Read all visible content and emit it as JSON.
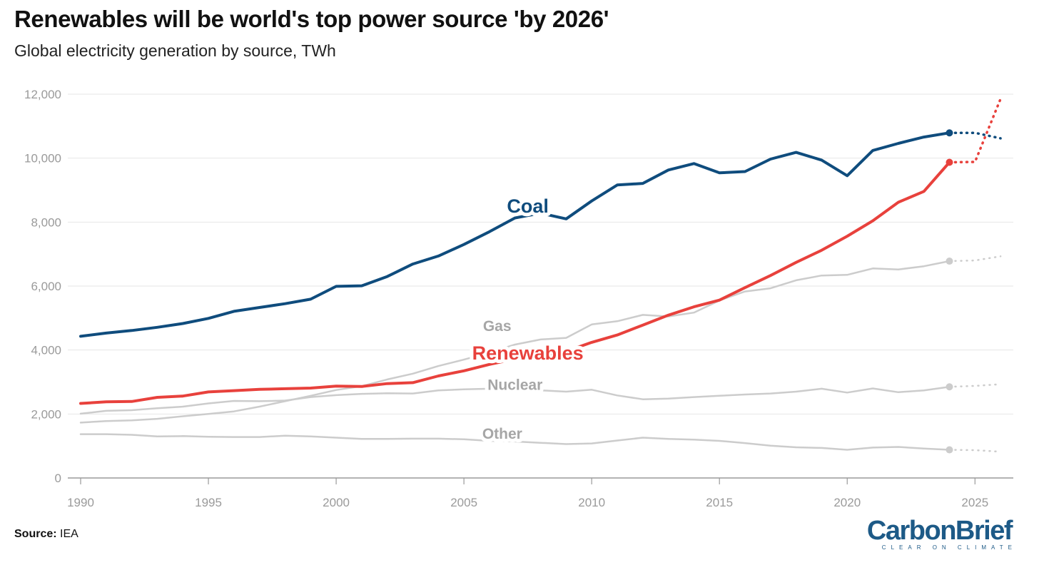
{
  "title": "Renewables will be world's top power source 'by 2026'",
  "subtitle": "Global electricity generation by source, TWh",
  "source_label": "Source:",
  "source_value": "IEA",
  "logo": {
    "name": "CarbonBrief",
    "tagline": "CLEAR ON CLIMATE"
  },
  "chart_data": {
    "type": "line",
    "title": "Renewables will be world's top power source 'by 2026'",
    "subtitle": "Global electricity generation by source, TWh",
    "xlim": [
      1990,
      2026.5
    ],
    "ylim": [
      0,
      12000
    ],
    "x_ticks": [
      1990,
      1995,
      2000,
      2005,
      2010,
      2015,
      2020,
      2025
    ],
    "x_tick_labels": [
      "1990",
      "1995",
      "2000",
      "2005",
      "2010",
      "2015",
      "2020",
      "2025"
    ],
    "y_ticks": [
      0,
      2000,
      4000,
      6000,
      8000,
      10000,
      12000
    ],
    "y_tick_labels": [
      "0",
      "2,000",
      "4,000",
      "6,000",
      "8,000",
      "10,000",
      "12,000"
    ],
    "grid": true,
    "x": [
      1990,
      1991,
      1992,
      1993,
      1994,
      1995,
      1996,
      1997,
      1998,
      1999,
      2000,
      2001,
      2002,
      2003,
      2004,
      2005,
      2006,
      2007,
      2008,
      2009,
      2010,
      2011,
      2012,
      2013,
      2014,
      2015,
      2016,
      2017,
      2018,
      2019,
      2020,
      2021,
      2022,
      2023,
      2024
    ],
    "forecast_x": [
      2024,
      2025,
      2026
    ],
    "series": [
      {
        "name": "Other",
        "color": "#cccccc",
        "highlight": false,
        "values": [
          1370,
          1370,
          1350,
          1300,
          1310,
          1290,
          1280,
          1280,
          1320,
          1300,
          1260,
          1220,
          1220,
          1230,
          1230,
          1210,
          1160,
          1140,
          1100,
          1060,
          1080,
          1170,
          1260,
          1220,
          1200,
          1160,
          1090,
          1010,
          960,
          940,
          880,
          950,
          970,
          920,
          880
        ],
        "forecast": [
          880,
          870,
          820
        ],
        "label_x": 2006.5,
        "label_y": 1230
      },
      {
        "name": "Nuclear",
        "color": "#cccccc",
        "highlight": false,
        "values": [
          2010,
          2100,
          2120,
          2180,
          2230,
          2330,
          2410,
          2400,
          2420,
          2530,
          2590,
          2630,
          2650,
          2640,
          2740,
          2770,
          2790,
          2720,
          2740,
          2700,
          2760,
          2580,
          2460,
          2480,
          2530,
          2570,
          2610,
          2640,
          2700,
          2790,
          2670,
          2800,
          2680,
          2740,
          2850
        ],
        "forecast": [
          2850,
          2880,
          2930
        ],
        "label_x": 2007,
        "label_y": 2750
      },
      {
        "name": "Gas",
        "color": "#cccccc",
        "highlight": false,
        "values": [
          1730,
          1780,
          1800,
          1850,
          1930,
          2000,
          2080,
          2230,
          2400,
          2570,
          2750,
          2870,
          3080,
          3260,
          3500,
          3700,
          3920,
          4170,
          4330,
          4380,
          4800,
          4900,
          5100,
          5050,
          5170,
          5550,
          5830,
          5930,
          6180,
          6330,
          6350,
          6550,
          6520,
          6620,
          6780
        ],
        "forecast": [
          6780,
          6800,
          6930
        ],
        "label_x": 2006.3,
        "label_y": 4600
      },
      {
        "name": "Renewables",
        "color": "#e8413c",
        "highlight": true,
        "values": [
          2330,
          2380,
          2390,
          2520,
          2560,
          2690,
          2730,
          2770,
          2790,
          2810,
          2870,
          2860,
          2950,
          2980,
          3190,
          3350,
          3550,
          3720,
          3820,
          3960,
          4240,
          4470,
          4780,
          5090,
          5350,
          5560,
          5950,
          6330,
          6740,
          7120,
          7560,
          8040,
          8620,
          8960,
          9870
        ],
        "forecast": [
          9870,
          9880,
          11850
        ],
        "label_x": 2007.5,
        "label_y": 3700
      },
      {
        "name": "Coal",
        "color": "#0f4c7d",
        "highlight": true,
        "values": [
          4430,
          4530,
          4610,
          4710,
          4830,
          4990,
          5210,
          5330,
          5450,
          5590,
          5990,
          6010,
          6300,
          6690,
          6940,
          7300,
          7700,
          8130,
          8280,
          8100,
          8660,
          9160,
          9210,
          9630,
          9830,
          9540,
          9580,
          9970,
          10180,
          9940,
          9450,
          10240,
          10460,
          10660,
          10790
        ],
        "forecast": [
          10790,
          10790,
          10620
        ],
        "label_x": 2007.5,
        "label_y": 8300
      }
    ]
  }
}
